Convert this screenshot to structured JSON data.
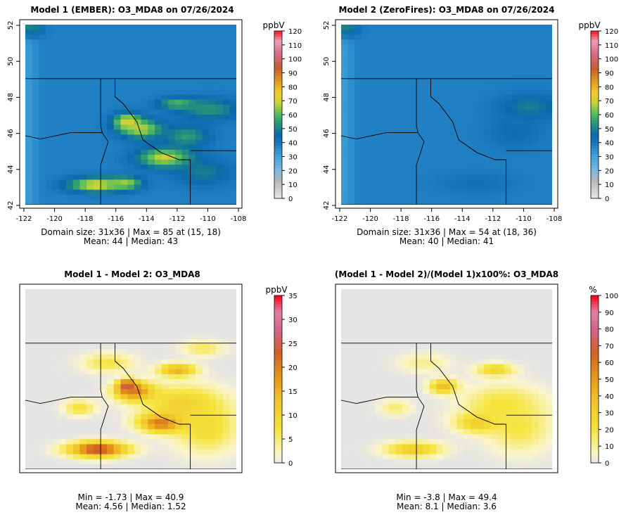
{
  "panels": [
    {
      "title": "Model 1 (EMBER): O3_MDA8 on 07/26/2024",
      "colorbar_unit": "ppbV",
      "colorbar_ticks": [
        0,
        10,
        20,
        30,
        40,
        50,
        60,
        70,
        80,
        90,
        100,
        110,
        120
      ],
      "colorbar_range": [
        0,
        120
      ],
      "palette": "ozone",
      "x_ticks": [
        "-122",
        "-120",
        "-118",
        "-116",
        "-114",
        "-112",
        "-110",
        "-108"
      ],
      "y_ticks": [
        "42",
        "44",
        "46",
        "48",
        "50",
        "52"
      ],
      "show_axes": true,
      "stats_line1": "Domain size: 31x36 | Max = 85 at (15, 18)",
      "stats_line2": "Mean: 44 |  Median: 43"
    },
    {
      "title": "Model 2 (ZeroFires): O3_MDA8 on 07/26/2024",
      "colorbar_unit": "ppbV",
      "colorbar_ticks": [
        0,
        10,
        20,
        30,
        40,
        50,
        60,
        70,
        80,
        90,
        100,
        110,
        120
      ],
      "colorbar_range": [
        0,
        120
      ],
      "palette": "ozone",
      "x_ticks": [
        "-122",
        "-120",
        "-118",
        "-116",
        "-114",
        "-112",
        "-110",
        "-108"
      ],
      "y_ticks": [
        "42",
        "44",
        "46",
        "48",
        "50",
        "52"
      ],
      "show_axes": true,
      "stats_line1": "Domain size: 31x36 | Max = 54 at (18, 36)",
      "stats_line2": "Mean: 40 |  Median: 41"
    },
    {
      "title": "Model 1 - Model 2: O3_MDA8",
      "colorbar_unit": "ppbV",
      "colorbar_ticks": [
        0,
        5,
        10,
        15,
        20,
        25,
        30,
        35
      ],
      "colorbar_range": [
        0,
        35
      ],
      "palette": "diff",
      "show_axes": false,
      "stats_line1": "Min = -1.73 | Max = 40.9",
      "stats_line2": "Mean: 4.56 |  Median: 1.52"
    },
    {
      "title": "(Model 1 - Model 2)/(Model 1)x100%: O3_MDA8",
      "colorbar_unit": "%",
      "colorbar_ticks": [
        0,
        10,
        20,
        30,
        40,
        50,
        60,
        70,
        80,
        90,
        100
      ],
      "colorbar_range": [
        0,
        100
      ],
      "palette": "diff",
      "show_axes": false,
      "stats_line1": "Min = -3.8 | Max = 49.4",
      "stats_line2": "Mean: 8.1 |  Median: 3.6"
    }
  ],
  "chart_data": [
    {
      "type": "heatmap",
      "title": "Model 1 (EMBER): O3_MDA8 on 07/26/2024",
      "variable": "O3_MDA8",
      "units": "ppbV",
      "grid": [
        31,
        36
      ],
      "xlim": [
        -122,
        -108
      ],
      "ylim": [
        42,
        52
      ],
      "clim": [
        0,
        120
      ],
      "base_value": 38,
      "coast_value": 30,
      "hotspots": [
        {
          "lon": -115.2,
          "lat": 46.6,
          "value": 75,
          "rx": 0.9,
          "ry": 0.45
        },
        {
          "lon": -114.3,
          "lat": 46.2,
          "value": 68,
          "rx": 1.4,
          "ry": 0.5
        },
        {
          "lon": -112.7,
          "lat": 44.6,
          "value": 70,
          "rx": 1.8,
          "ry": 0.55
        },
        {
          "lon": -117.3,
          "lat": 43.1,
          "value": 72,
          "rx": 1.8,
          "ry": 0.4
        },
        {
          "lon": -115.4,
          "lat": 43.2,
          "value": 66,
          "rx": 1.1,
          "ry": 0.35
        },
        {
          "lon": -111.8,
          "lat": 47.6,
          "value": 62,
          "rx": 1.3,
          "ry": 0.3
        },
        {
          "lon": -109.8,
          "lat": 47.3,
          "value": 54,
          "rx": 2.0,
          "ry": 0.6
        },
        {
          "lon": -111.3,
          "lat": 45.8,
          "value": 55,
          "rx": 1.5,
          "ry": 0.6
        },
        {
          "lon": -110.2,
          "lat": 43.8,
          "value": 50,
          "rx": 1.8,
          "ry": 0.7
        },
        {
          "lon": -121.6,
          "lat": 51.8,
          "value": 52,
          "rx": 0.7,
          "ry": 0.5
        }
      ],
      "domain_max": 85,
      "mean": 44,
      "median": 43
    },
    {
      "type": "heatmap",
      "title": "Model 2 (ZeroFires): O3_MDA8 on 07/26/2024",
      "variable": "O3_MDA8",
      "units": "ppbV",
      "grid": [
        31,
        36
      ],
      "xlim": [
        -122,
        -108
      ],
      "ylim": [
        42,
        52
      ],
      "clim": [
        0,
        120
      ],
      "base_value": 38,
      "coast_value": 30,
      "hotspots": [
        {
          "lon": -109.5,
          "lat": 47.4,
          "value": 50,
          "rx": 2.0,
          "ry": 0.7
        },
        {
          "lon": -110.5,
          "lat": 46.0,
          "value": 44,
          "rx": 1.8,
          "ry": 0.8
        },
        {
          "lon": -121.6,
          "lat": 51.8,
          "value": 52,
          "rx": 0.7,
          "ry": 0.5
        },
        {
          "lon": -113.0,
          "lat": 43.2,
          "value": 42,
          "rx": 2.5,
          "ry": 0.6
        }
      ],
      "domain_max": 54,
      "mean": 40,
      "median": 41
    },
    {
      "type": "heatmap",
      "title": "Model 1 - Model 2: O3_MDA8",
      "variable": "O3_MDA8 difference",
      "units": "ppbV",
      "grid": [
        31,
        36
      ],
      "clim": [
        0,
        35
      ],
      "base_value": 0,
      "hotspots": [
        {
          "lon": -115.2,
          "lat": 46.6,
          "value": 34,
          "rx": 0.6,
          "ry": 0.35
        },
        {
          "lon": -114.7,
          "lat": 46.3,
          "value": 22,
          "rx": 1.3,
          "ry": 0.5
        },
        {
          "lon": -112.8,
          "lat": 44.6,
          "value": 27,
          "rx": 1.5,
          "ry": 0.5
        },
        {
          "lon": -117.2,
          "lat": 43.1,
          "value": 26,
          "rx": 1.9,
          "ry": 0.4
        },
        {
          "lon": -111.9,
          "lat": 47.5,
          "value": 16,
          "rx": 1.2,
          "ry": 0.35
        },
        {
          "lon": -111.5,
          "lat": 45.6,
          "value": 11,
          "rx": 2.5,
          "ry": 1.0
        },
        {
          "lon": -110.0,
          "lat": 44.3,
          "value": 9,
          "rx": 2.0,
          "ry": 1.3
        },
        {
          "lon": -118.4,
          "lat": 45.4,
          "value": 8,
          "rx": 1.0,
          "ry": 0.4
        },
        {
          "lon": -116.5,
          "lat": 47.9,
          "value": 7,
          "rx": 1.6,
          "ry": 0.5
        },
        {
          "lon": -110.2,
          "lat": 48.7,
          "value": 6,
          "rx": 1.3,
          "ry": 0.4
        }
      ],
      "min": -1.73,
      "max": 40.9,
      "mean": 4.56,
      "median": 1.52
    },
    {
      "type": "heatmap",
      "title": "(Model 1 - Model 2)/(Model 1)x100%: O3_MDA8",
      "variable": "O3_MDA8 relative difference",
      "units": "%",
      "grid": [
        31,
        36
      ],
      "clim": [
        0,
        100
      ],
      "base_value": 0,
      "hotspots": [
        {
          "lon": -115.2,
          "lat": 46.6,
          "value": 42,
          "rx": 0.9,
          "ry": 0.4
        },
        {
          "lon": -112.8,
          "lat": 44.6,
          "value": 38,
          "rx": 1.5,
          "ry": 0.55
        },
        {
          "lon": -117.2,
          "lat": 43.1,
          "value": 35,
          "rx": 1.8,
          "ry": 0.4
        },
        {
          "lon": -111.8,
          "lat": 47.5,
          "value": 30,
          "rx": 1.2,
          "ry": 0.35
        },
        {
          "lon": -111.3,
          "lat": 45.6,
          "value": 22,
          "rx": 2.5,
          "ry": 1.0
        },
        {
          "lon": -110.2,
          "lat": 44.3,
          "value": 20,
          "rx": 2.0,
          "ry": 1.3
        },
        {
          "lon": -118.4,
          "lat": 45.4,
          "value": 15,
          "rx": 1.0,
          "ry": 0.4
        },
        {
          "lon": -116.5,
          "lat": 47.9,
          "value": 12,
          "rx": 1.6,
          "ry": 0.5
        }
      ],
      "min": -3.8,
      "max": 49.4,
      "mean": 8.1,
      "median": 3.6
    }
  ]
}
